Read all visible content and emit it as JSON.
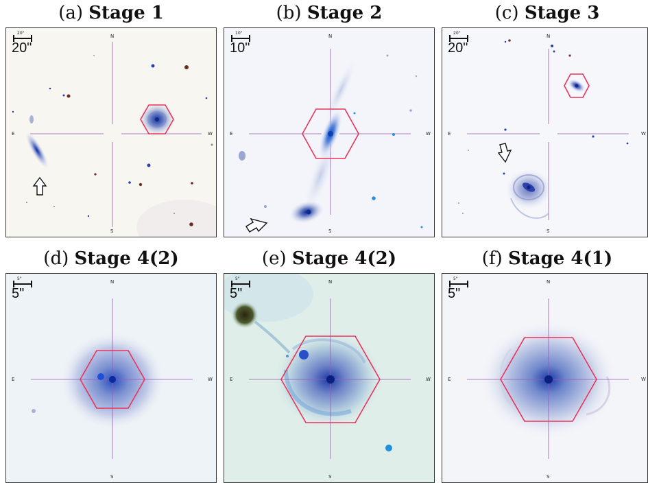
{
  "panels": [
    {
      "letter": "(a)",
      "stage": "Stage 1",
      "scale_small": "20\"",
      "scale_big": "20\"",
      "north": "N",
      "south": "S",
      "east": "E",
      "west": "W"
    },
    {
      "letter": "(b)",
      "stage": "Stage 2",
      "scale_small": "10\"",
      "scale_big": "10\"",
      "north": "N",
      "south": "S",
      "east": "E",
      "west": "W"
    },
    {
      "letter": "(c)",
      "stage": "Stage 3",
      "scale_small": "20\"",
      "scale_big": "20\"",
      "north": "N",
      "south": "S",
      "east": "E",
      "west": "W"
    },
    {
      "letter": "(d)",
      "stage": "Stage 4(2)",
      "scale_small": "5\"",
      "scale_big": "5\"",
      "north": "N",
      "south": "S",
      "east": "E",
      "west": "W"
    },
    {
      "letter": "(e)",
      "stage": "Stage 4(2)",
      "scale_small": "5\"",
      "scale_big": "5\"",
      "north": "N",
      "south": "S",
      "east": "E",
      "west": "W"
    },
    {
      "letter": "(f)",
      "stage": "Stage 4(1)",
      "scale_small": "5\"",
      "scale_big": "5\"",
      "north": "N",
      "south": "S",
      "east": "E",
      "west": "W"
    }
  ],
  "colors": {
    "hexagon": "#e8345a",
    "crosshair": "#9b59b6",
    "galaxy_core": "#1a3fa8"
  },
  "icons": [
    "arrow-icon"
  ]
}
